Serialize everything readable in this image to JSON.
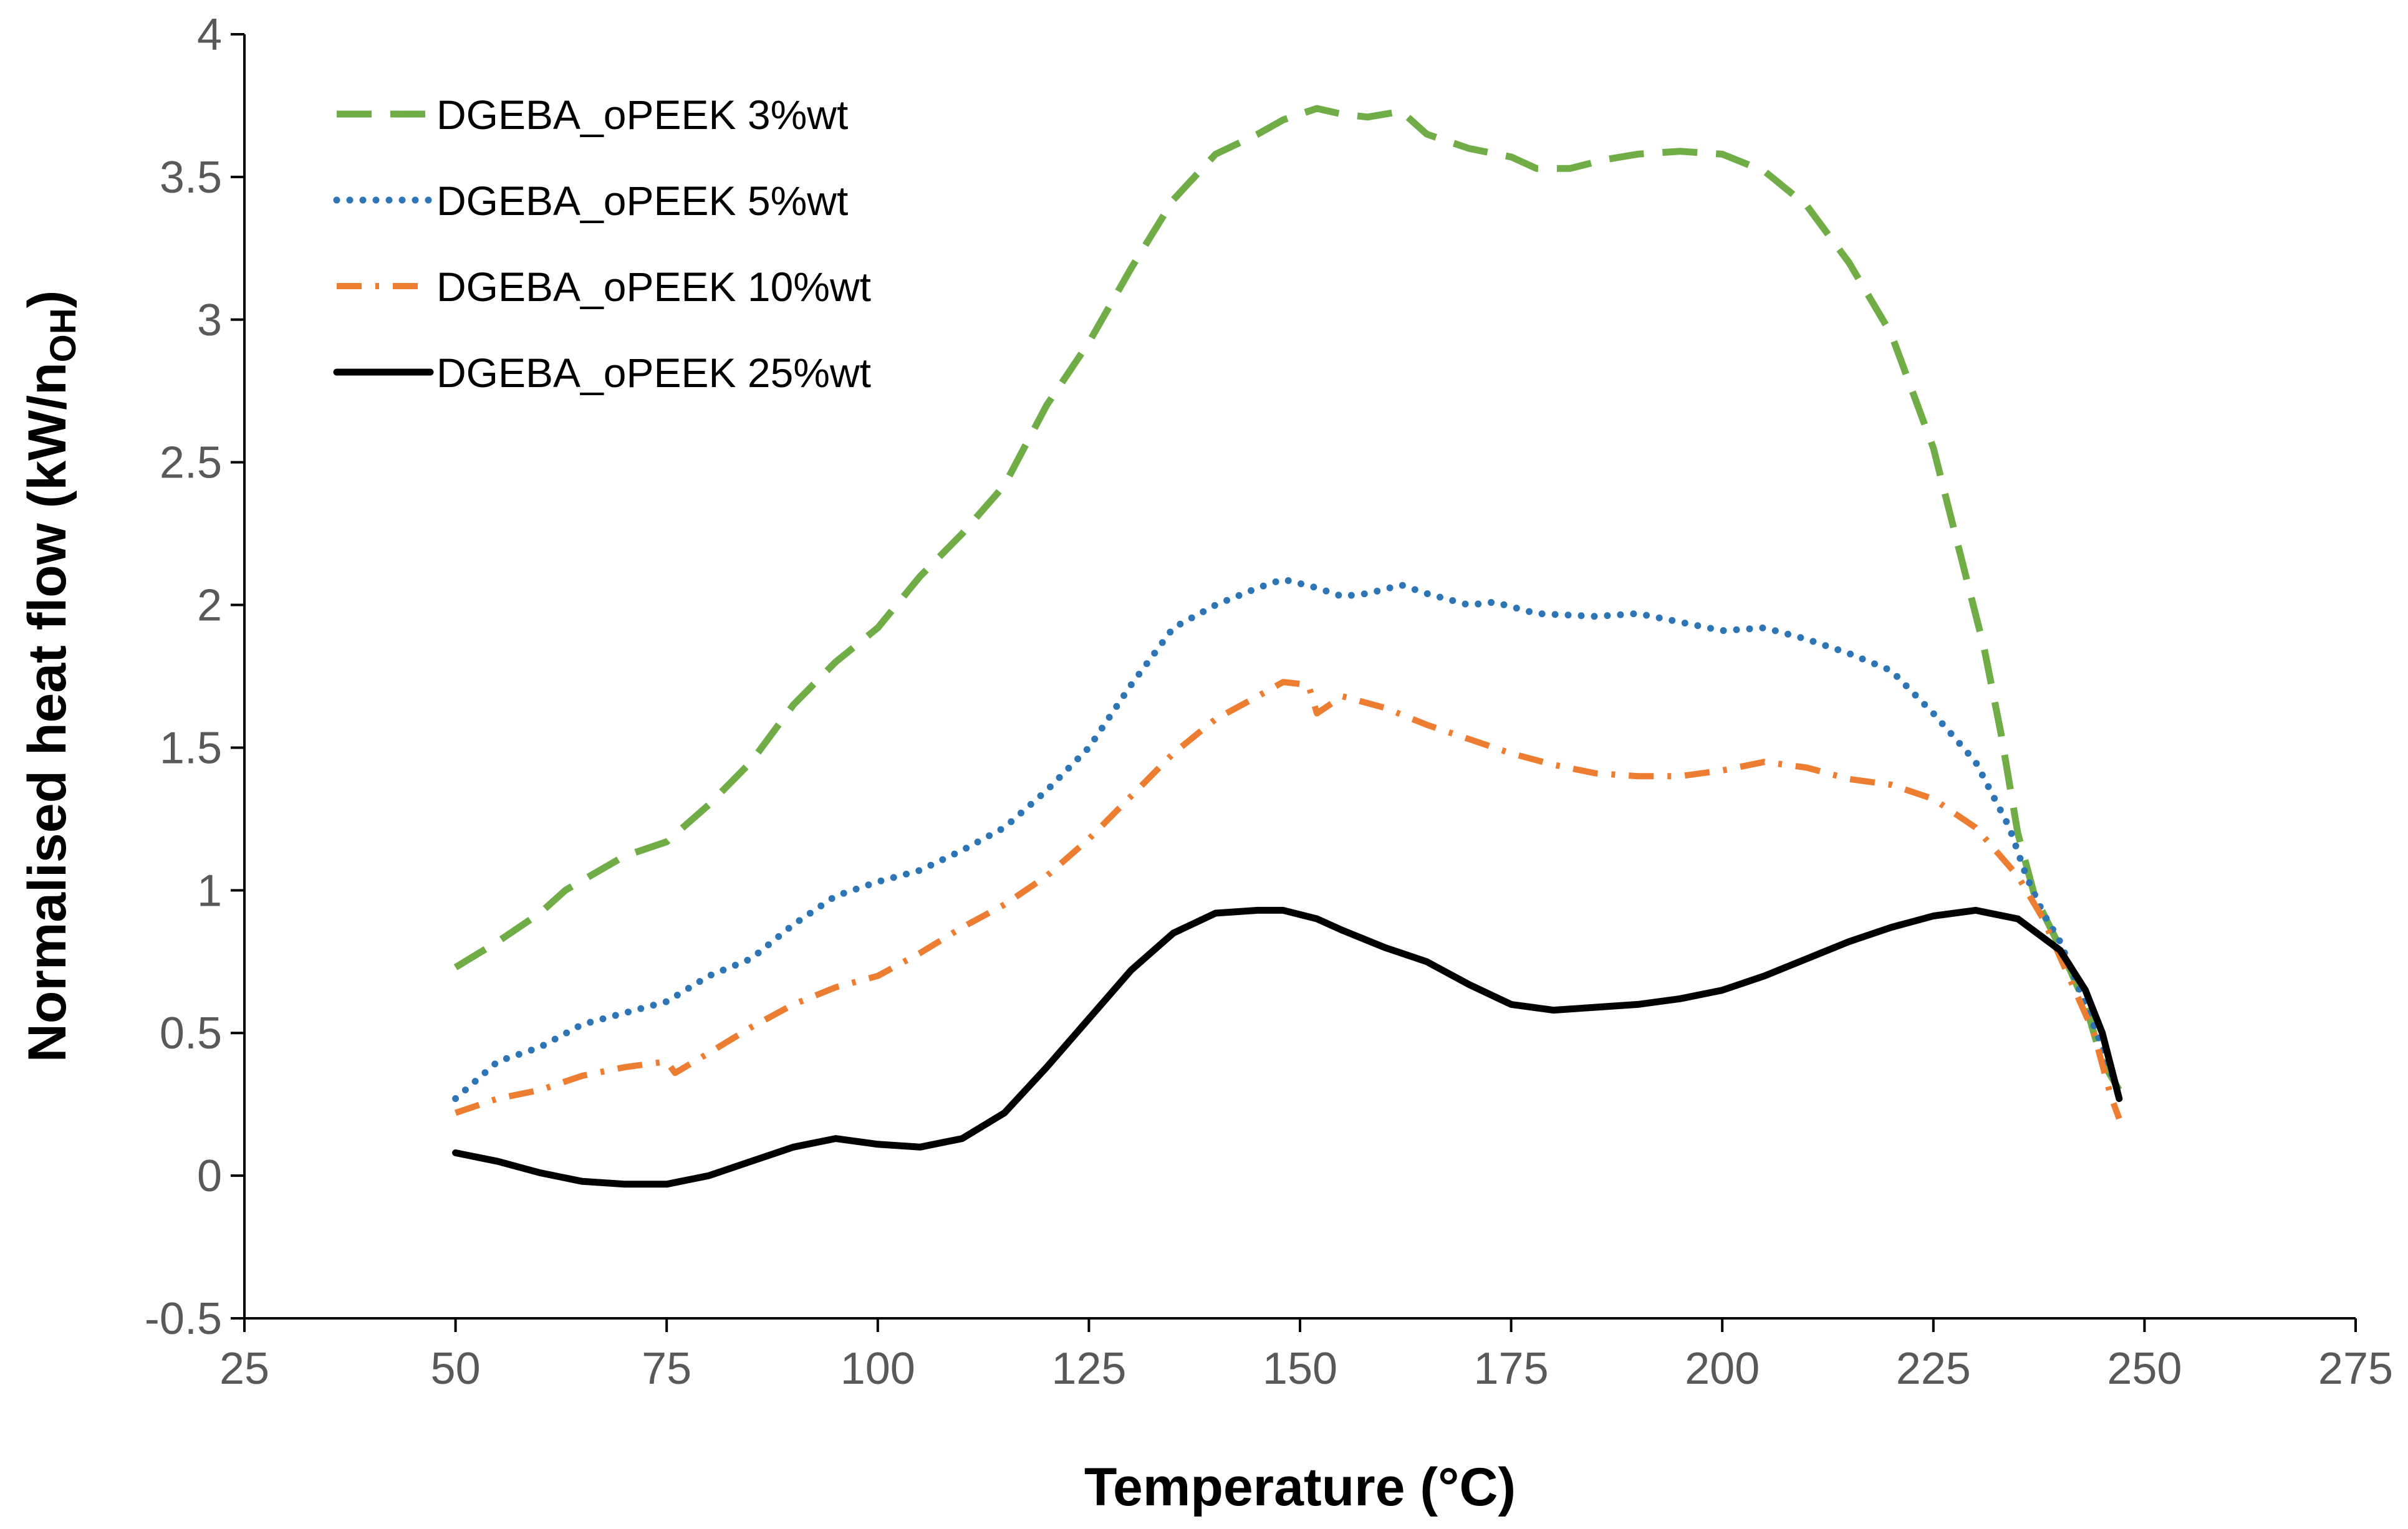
{
  "chart_data": {
    "type": "line",
    "title": "",
    "xlabel": "Temperature (°C)",
    "ylabel": "Normalised heat flow (kW/n",
    "ylabel_subscript": "OH",
    "ylabel_suffix": ")",
    "xlim": [
      25,
      275
    ],
    "ylim": [
      -0.5,
      4
    ],
    "xticks": [
      25,
      50,
      75,
      100,
      125,
      150,
      175,
      200,
      225,
      250,
      275
    ],
    "yticks": [
      -0.5,
      0,
      0.5,
      1,
      1.5,
      2,
      2.5,
      3,
      3.5,
      4
    ],
    "grid": false,
    "legend_position": "top-left",
    "series": [
      {
        "name": "DGEBA_oPEEK 3%wt",
        "color": "#70AD47",
        "dash": "dashed",
        "points": [
          [
            50,
            0.73
          ],
          [
            55,
            0.82
          ],
          [
            60,
            0.92
          ],
          [
            63,
            1.0
          ],
          [
            70,
            1.12
          ],
          [
            75,
            1.17
          ],
          [
            80,
            1.3
          ],
          [
            85,
            1.45
          ],
          [
            90,
            1.65
          ],
          [
            95,
            1.8
          ],
          [
            100,
            1.92
          ],
          [
            105,
            2.1
          ],
          [
            110,
            2.25
          ],
          [
            115,
            2.42
          ],
          [
            120,
            2.7
          ],
          [
            125,
            2.92
          ],
          [
            130,
            3.18
          ],
          [
            135,
            3.42
          ],
          [
            140,
            3.58
          ],
          [
            145,
            3.65
          ],
          [
            148,
            3.7
          ],
          [
            152,
            3.74
          ],
          [
            155,
            3.72
          ],
          [
            158,
            3.71
          ],
          [
            162,
            3.73
          ],
          [
            165,
            3.65
          ],
          [
            170,
            3.6
          ],
          [
            175,
            3.57
          ],
          [
            178,
            3.53
          ],
          [
            182,
            3.53
          ],
          [
            186,
            3.56
          ],
          [
            190,
            3.58
          ],
          [
            195,
            3.59
          ],
          [
            200,
            3.58
          ],
          [
            205,
            3.52
          ],
          [
            210,
            3.4
          ],
          [
            215,
            3.2
          ],
          [
            220,
            2.95
          ],
          [
            225,
            2.55
          ],
          [
            228,
            2.2
          ],
          [
            231,
            1.85
          ],
          [
            233,
            1.55
          ],
          [
            235,
            1.2
          ],
          [
            237,
            0.98
          ],
          [
            240,
            0.8
          ],
          [
            243,
            0.6
          ],
          [
            245,
            0.4
          ],
          [
            247,
            0.3
          ]
        ]
      },
      {
        "name": "DGEBA_oPEEK 5%wt",
        "color": "#2E75B6",
        "dash": "dotted",
        "points": [
          [
            50,
            0.27
          ],
          [
            55,
            0.4
          ],
          [
            60,
            0.45
          ],
          [
            65,
            0.53
          ],
          [
            70,
            0.57
          ],
          [
            75,
            0.61
          ],
          [
            80,
            0.7
          ],
          [
            85,
            0.76
          ],
          [
            90,
            0.88
          ],
          [
            95,
            0.98
          ],
          [
            100,
            1.03
          ],
          [
            105,
            1.07
          ],
          [
            110,
            1.14
          ],
          [
            115,
            1.22
          ],
          [
            120,
            1.35
          ],
          [
            125,
            1.5
          ],
          [
            130,
            1.72
          ],
          [
            135,
            1.92
          ],
          [
            140,
            2.0
          ],
          [
            145,
            2.06
          ],
          [
            148,
            2.09
          ],
          [
            152,
            2.06
          ],
          [
            155,
            2.03
          ],
          [
            158,
            2.04
          ],
          [
            162,
            2.07
          ],
          [
            165,
            2.04
          ],
          [
            170,
            2.0
          ],
          [
            173,
            2.01
          ],
          [
            178,
            1.97
          ],
          [
            185,
            1.96
          ],
          [
            190,
            1.97
          ],
          [
            195,
            1.94
          ],
          [
            200,
            1.91
          ],
          [
            205,
            1.92
          ],
          [
            210,
            1.88
          ],
          [
            215,
            1.83
          ],
          [
            220,
            1.77
          ],
          [
            225,
            1.62
          ],
          [
            230,
            1.45
          ],
          [
            234,
            1.22
          ],
          [
            236,
            1.05
          ],
          [
            238,
            0.92
          ],
          [
            240,
            0.82
          ],
          [
            243,
            0.6
          ],
          [
            245,
            0.45
          ],
          [
            247,
            0.28
          ]
        ]
      },
      {
        "name": "DGEBA_oPEEK 10%wt",
        "color": "#ED7D31",
        "dash": "dash-dot",
        "points": [
          [
            50,
            0.22
          ],
          [
            55,
            0.27
          ],
          [
            60,
            0.3
          ],
          [
            65,
            0.35
          ],
          [
            70,
            0.38
          ],
          [
            75,
            0.4
          ],
          [
            76,
            0.36
          ],
          [
            80,
            0.43
          ],
          [
            85,
            0.52
          ],
          [
            90,
            0.6
          ],
          [
            95,
            0.66
          ],
          [
            100,
            0.7
          ],
          [
            105,
            0.78
          ],
          [
            110,
            0.87
          ],
          [
            115,
            0.95
          ],
          [
            120,
            1.05
          ],
          [
            125,
            1.18
          ],
          [
            130,
            1.33
          ],
          [
            135,
            1.48
          ],
          [
            140,
            1.6
          ],
          [
            145,
            1.68
          ],
          [
            148,
            1.73
          ],
          [
            151,
            1.72
          ],
          [
            152,
            1.62
          ],
          [
            155,
            1.68
          ],
          [
            160,
            1.64
          ],
          [
            165,
            1.58
          ],
          [
            170,
            1.53
          ],
          [
            175,
            1.48
          ],
          [
            180,
            1.44
          ],
          [
            185,
            1.41
          ],
          [
            190,
            1.4
          ],
          [
            195,
            1.4
          ],
          [
            200,
            1.42
          ],
          [
            205,
            1.45
          ],
          [
            210,
            1.43
          ],
          [
            215,
            1.39
          ],
          [
            220,
            1.37
          ],
          [
            225,
            1.32
          ],
          [
            230,
            1.22
          ],
          [
            235,
            1.05
          ],
          [
            238,
            0.9
          ],
          [
            241,
            0.7
          ],
          [
            244,
            0.5
          ],
          [
            246,
            0.28
          ],
          [
            247,
            0.2
          ]
        ]
      },
      {
        "name": "DGEBA_oPEEK 25%wt",
        "color": "#000000",
        "dash": "solid",
        "points": [
          [
            50,
            0.08
          ],
          [
            55,
            0.05
          ],
          [
            60,
            0.01
          ],
          [
            65,
            -0.02
          ],
          [
            70,
            -0.03
          ],
          [
            75,
            -0.03
          ],
          [
            80,
            0.0
          ],
          [
            85,
            0.05
          ],
          [
            90,
            0.1
          ],
          [
            95,
            0.13
          ],
          [
            100,
            0.11
          ],
          [
            105,
            0.1
          ],
          [
            110,
            0.13
          ],
          [
            115,
            0.22
          ],
          [
            120,
            0.38
          ],
          [
            125,
            0.55
          ],
          [
            130,
            0.72
          ],
          [
            135,
            0.85
          ],
          [
            140,
            0.92
          ],
          [
            145,
            0.93
          ],
          [
            148,
            0.93
          ],
          [
            152,
            0.9
          ],
          [
            155,
            0.86
          ],
          [
            160,
            0.8
          ],
          [
            165,
            0.75
          ],
          [
            170,
            0.67
          ],
          [
            175,
            0.6
          ],
          [
            180,
            0.58
          ],
          [
            185,
            0.59
          ],
          [
            190,
            0.6
          ],
          [
            195,
            0.62
          ],
          [
            200,
            0.65
          ],
          [
            205,
            0.7
          ],
          [
            210,
            0.76
          ],
          [
            215,
            0.82
          ],
          [
            220,
            0.87
          ],
          [
            225,
            0.91
          ],
          [
            230,
            0.93
          ],
          [
            235,
            0.9
          ],
          [
            240,
            0.79
          ],
          [
            243,
            0.65
          ],
          [
            245,
            0.5
          ],
          [
            247,
            0.27
          ]
        ]
      }
    ]
  }
}
